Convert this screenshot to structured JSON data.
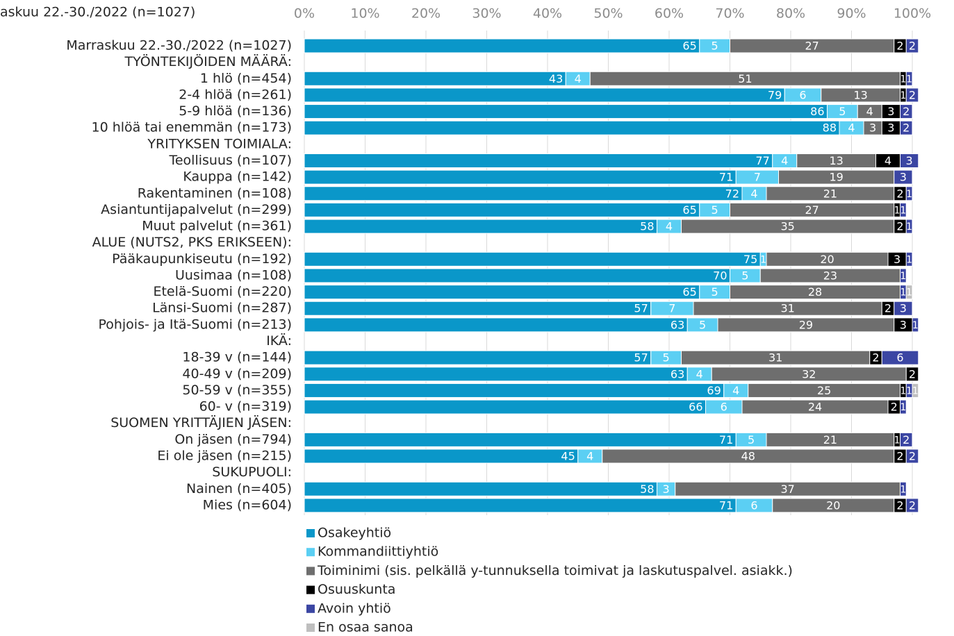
{
  "chart_data": {
    "type": "stacked_barh",
    "title": "askuu 22.-30./2022 (n=1027)",
    "categories": [
      "Marraskuu 22.-30./2022 (n=1027)",
      "TYÖNTEKIJÖIDEN MÄÄRÄ:",
      "1 hlö (n=454)",
      "2-4 hlöä (n=261)",
      "5-9 hlöä (n=136)",
      "10 hlöä tai enemmän (n=173)",
      "YRITYKSEN TOIMIALA:",
      "Teollisuus (n=107)",
      "Kauppa (n=142)",
      "Rakentaminen (n=108)",
      "Asiantuntijapalvelut (n=299)",
      "Muut palvelut (n=361)",
      "ALUE (NUTS2, PKS ERIKSEEN):",
      "Pääkaupunkiseutu (n=192)",
      "Uusimaa (n=108)",
      "Etelä-Suomi (n=220)",
      "Länsi-Suomi (n=287)",
      "Pohjois- ja Itä-Suomi (n=213)",
      "IKÄ:",
      "18-39 v (n=144)",
      "40-49 v (n=209)",
      "50-59 v (n=355)",
      "60- v (n=319)",
      "SUOMEN YRITTÄJIEN JÄSEN:",
      "On jäsen (n=794)",
      "Ei ole jäsen (n=215)",
      "SUKUPUOLI:",
      "Nainen (n=405)",
      "Mies (n=604)"
    ],
    "series": [
      {
        "name": "Osakeyhtiö",
        "color": "#0a97c9",
        "values": [
          65,
          null,
          43,
          79,
          86,
          88,
          null,
          77,
          71,
          72,
          65,
          58,
          null,
          75,
          70,
          65,
          57,
          63,
          null,
          57,
          63,
          69,
          66,
          null,
          71,
          45,
          null,
          58,
          71
        ]
      },
      {
        "name": "Kommandiittiyhtiö",
        "color": "#5bcff3",
        "values": [
          5,
          null,
          4,
          6,
          5,
          4,
          null,
          4,
          7,
          4,
          5,
          4,
          null,
          1,
          5,
          5,
          7,
          5,
          null,
          5,
          4,
          4,
          6,
          null,
          5,
          4,
          null,
          3,
          6
        ]
      },
      {
        "name": "Toiminimi (sis. pelkällä y-tunnuksella toimivat ja laskutuspalvel. asiakk.)",
        "color": "#6e6e6e",
        "values": [
          27,
          null,
          51,
          13,
          4,
          3,
          null,
          13,
          19,
          21,
          27,
          35,
          null,
          20,
          23,
          28,
          31,
          29,
          null,
          31,
          32,
          25,
          24,
          null,
          21,
          48,
          null,
          37,
          20
        ]
      },
      {
        "name": "Osuuskunta",
        "color": "#000000",
        "values": [
          2,
          null,
          1,
          1,
          3,
          3,
          null,
          4,
          null,
          2,
          1,
          2,
          null,
          3,
          null,
          null,
          2,
          3,
          null,
          2,
          2,
          1,
          2,
          null,
          1,
          2,
          null,
          null,
          2
        ]
      },
      {
        "name": "Avoin yhtiö",
        "color": "#3b46a3",
        "values": [
          2,
          null,
          1,
          2,
          2,
          2,
          null,
          3,
          3,
          1,
          1,
          1,
          null,
          1,
          1,
          1,
          3,
          1,
          null,
          6,
          null,
          1,
          1,
          null,
          2,
          2,
          null,
          1,
          2
        ]
      },
      {
        "name": "En osaa sanoa",
        "color": "#bfbfbf",
        "values": [
          null,
          null,
          null,
          null,
          null,
          null,
          null,
          null,
          null,
          null,
          null,
          null,
          null,
          null,
          null,
          1,
          null,
          null,
          null,
          null,
          null,
          1,
          null,
          null,
          null,
          null,
          null,
          null,
          null
        ]
      }
    ],
    "xlim": [
      0,
      100
    ],
    "xticks": [
      {
        "value": 0,
        "label": "0%"
      },
      {
        "value": 10,
        "label": "10%"
      },
      {
        "value": 20,
        "label": "20%"
      },
      {
        "value": 30,
        "label": "30%"
      },
      {
        "value": 40,
        "label": "40%"
      },
      {
        "value": 50,
        "label": "50%"
      },
      {
        "value": 60,
        "label": "60%"
      },
      {
        "value": 70,
        "label": "70%"
      },
      {
        "value": 80,
        "label": "80%"
      },
      {
        "value": 90,
        "label": "90%"
      },
      {
        "value": 100,
        "label": "100%"
      }
    ],
    "grid": true
  }
}
